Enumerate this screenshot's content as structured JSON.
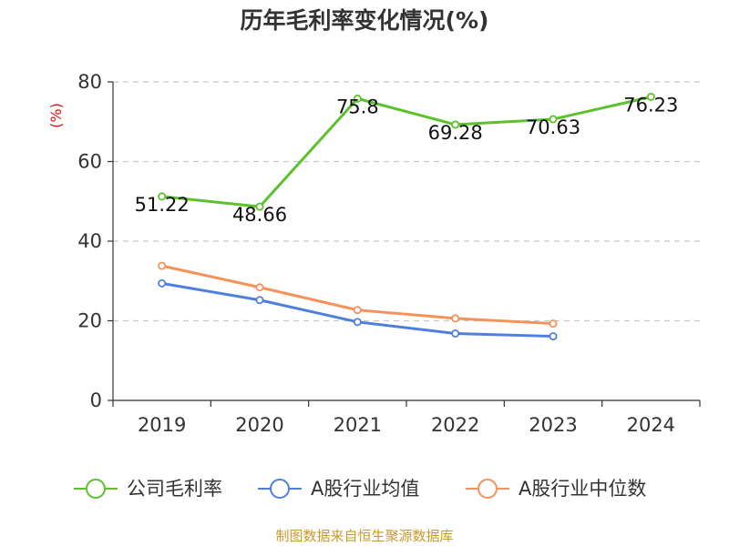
{
  "chart_data": {
    "type": "line",
    "title": "历年毛利率变化情况(%)",
    "ylabel": "(%)",
    "xlabel": "",
    "categories": [
      "2019",
      "2020",
      "2021",
      "2022",
      "2023",
      "2024"
    ],
    "ylim": [
      0,
      80
    ],
    "yticks": [
      0,
      20,
      40,
      60,
      80
    ],
    "grid": true,
    "legend_position": "bottom",
    "series": [
      {
        "name": "公司毛利率",
        "color": "#5cc22b",
        "values": [
          51.22,
          48.66,
          75.8,
          69.28,
          70.63,
          76.23
        ],
        "labels": [
          "51.22",
          "48.66",
          "75.8",
          "69.28",
          "70.63",
          "76.23"
        ]
      },
      {
        "name": "A股行业均值",
        "color": "#4f7fdd",
        "values": [
          29.4,
          25.2,
          19.7,
          16.8,
          16.1,
          null
        ]
      },
      {
        "name": "A股行业中位数",
        "color": "#f5925a",
        "values": [
          33.8,
          28.4,
          22.7,
          20.6,
          19.3,
          null
        ]
      }
    ],
    "source_text": "制图数据来自恒生聚源数据库",
    "colors": {
      "unit": "#e01010",
      "source": "#c79b2e",
      "grid": "#c8c8c8",
      "axis": "#333333"
    }
  }
}
